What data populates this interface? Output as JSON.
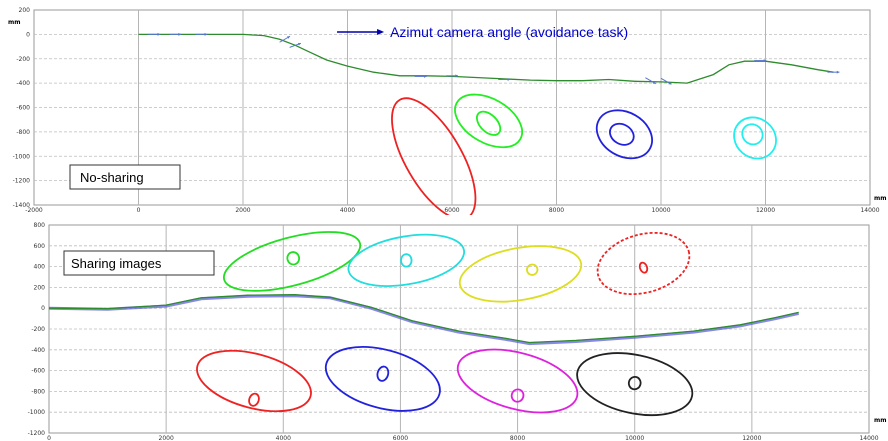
{
  "chart_data": [
    {
      "type": "line",
      "xlabel": "mm",
      "ylabel": "mm",
      "xlim": [
        -2000,
        14000
      ],
      "ylim": [
        -1400,
        200
      ],
      "xticks": [
        -2000,
        0,
        2000,
        4000,
        6000,
        8000,
        10000,
        12000,
        14000
      ],
      "xtick_labels": [
        "-2000",
        "0",
        "2000",
        "4000",
        "6000",
        "8000",
        "10000",
        "12000",
        "14000"
      ],
      "yticks": [
        200,
        0,
        -200,
        -400,
        -600,
        -800,
        -1000,
        -1200,
        -1400
      ],
      "ytick_labels": [
        "200",
        "0",
        "-200",
        "-400",
        "-600",
        "-800",
        "-1000",
        "-1200",
        "-1400"
      ],
      "grid": true,
      "box_label": "No-sharing",
      "annotation": "Azimut camera angle (avoidance task)",
      "annotation_arrow": {
        "from": [
          3800,
          20
        ],
        "to": [
          4700,
          20
        ],
        "color": "#0000aa"
      },
      "series": [
        {
          "color": "#2e8b2e",
          "x": [
            0,
            500,
            1000,
            1500,
            2000,
            2400,
            2700,
            3000,
            3300,
            3600,
            4000,
            4500,
            5000,
            5500,
            6000,
            6500,
            7000,
            7500,
            8000,
            8500,
            9000,
            9500,
            10000,
            10500,
            11000,
            11300,
            11600,
            12000,
            12500,
            13000,
            13300
          ],
          "y": [
            0,
            0,
            0,
            0,
            0,
            -10,
            -40,
            -90,
            -150,
            -210,
            -260,
            -310,
            -340,
            -340,
            -345,
            -355,
            -365,
            -375,
            -380,
            -380,
            -370,
            -385,
            -390,
            -400,
            -330,
            -250,
            -220,
            -220,
            -250,
            -290,
            -310
          ]
        }
      ],
      "direction_arrows": {
        "color": "#5577cc",
        "points": [
          [
            300,
            0,
            0
          ],
          [
            700,
            0,
            0
          ],
          [
            1200,
            0,
            0
          ],
          [
            2800,
            -40,
            -30
          ],
          [
            3000,
            -90,
            -20
          ],
          [
            5400,
            -345,
            0
          ],
          [
            6000,
            -340,
            0
          ],
          [
            7000,
            -370,
            0
          ],
          [
            9800,
            -380,
            30
          ],
          [
            10100,
            -385,
            30
          ],
          [
            11900,
            -215,
            0
          ],
          [
            13300,
            -310,
            0
          ]
        ]
      },
      "ellipses": [
        {
          "color": "#ee2222",
          "cx": 5650,
          "cy": -1020,
          "rx": 1300,
          "ry": 230,
          "angle": 60
        },
        {
          "color": "#22ee22",
          "cx": 6700,
          "cy": -710,
          "rx": 700,
          "ry": 180,
          "angle": 30
        },
        {
          "color": "#22ee22",
          "cx": 6700,
          "cy": -730,
          "rx": 270,
          "ry": 70,
          "angle": 45
        },
        {
          "color": "#2222dd",
          "cx": 9300,
          "cy": -820,
          "rx": 560,
          "ry": 180,
          "angle": 30
        },
        {
          "color": "#2222dd",
          "cx": 9250,
          "cy": -820,
          "rx": 240,
          "ry": 80,
          "angle": 30
        },
        {
          "color": "#22eeee",
          "cx": 11800,
          "cy": -850,
          "rx": 420,
          "ry": 160,
          "angle": 40
        },
        {
          "color": "#22eeee",
          "cx": 11750,
          "cy": -820,
          "rx": 200,
          "ry": 80,
          "angle": 40
        }
      ]
    },
    {
      "type": "line",
      "xlabel": "mm",
      "ylabel": "",
      "xlim": [
        0,
        14000
      ],
      "ylim": [
        -1200,
        800
      ],
      "xticks": [
        0,
        2000,
        4000,
        6000,
        8000,
        10000,
        12000,
        14000
      ],
      "xtick_labels": [
        "0",
        "2000",
        "4000",
        "6000",
        "8000",
        "10000",
        "12000",
        "14000"
      ],
      "yticks": [
        800,
        600,
        400,
        200,
        0,
        -200,
        -400,
        -600,
        -800,
        -1000,
        -1200
      ],
      "ytick_labels": [
        "800",
        "600",
        "400",
        "200",
        "0",
        "-200",
        "-400",
        "-600",
        "-800",
        "-1000",
        "-1200"
      ],
      "grid": true,
      "box_label": "Sharing images",
      "series": [
        {
          "color": "#5555dd",
          "x": [
            0,
            1000,
            2000,
            2600,
            3400,
            4200,
            4800,
            5500,
            6200,
            7000,
            7800,
            8200,
            9000,
            10000,
            11000,
            11800,
            12400,
            12800
          ],
          "y": [
            0,
            -10,
            20,
            90,
            115,
            120,
            100,
            0,
            -130,
            -230,
            -300,
            -340,
            -320,
            -280,
            -230,
            -170,
            -100,
            -50
          ]
        },
        {
          "color": "#2e8b2e",
          "x": [
            0,
            1000,
            2000,
            2600,
            3400,
            4200,
            4800,
            5500,
            6200,
            7000,
            7800,
            8200,
            9000,
            10000,
            11000,
            11800,
            12400,
            12800
          ],
          "y": [
            0,
            -5,
            30,
            100,
            125,
            130,
            105,
            10,
            -120,
            -220,
            -290,
            -330,
            -310,
            -270,
            -220,
            -160,
            -90,
            -40
          ]
        }
      ],
      "ellipses": [
        {
          "color": "#22dd22",
          "cx": 4150,
          "cy": 450,
          "rx": 1200,
          "ry": 230,
          "angle": -15
        },
        {
          "color": "#22dd22",
          "cx": 4170,
          "cy": 480,
          "rx": 100,
          "ry": 60,
          "angle": -15
        },
        {
          "color": "#22dddd",
          "cx": 6100,
          "cy": 460,
          "rx": 1000,
          "ry": 230,
          "angle": -10
        },
        {
          "color": "#22dddd",
          "cx": 6100,
          "cy": 460,
          "rx": 90,
          "ry": 60,
          "angle": 0
        },
        {
          "color": "#dddd22",
          "cx": 8050,
          "cy": 330,
          "rx": 1050,
          "ry": 250,
          "angle": -10
        },
        {
          "color": "#dddd22",
          "cx": 8250,
          "cy": 370,
          "rx": 90,
          "ry": 50,
          "angle": -20
        },
        {
          "color": "#ee2222",
          "cx": 10150,
          "cy": 430,
          "rx": 800,
          "ry": 280,
          "angle": -15,
          "dashed": true
        },
        {
          "color": "#ee2222",
          "cx": 10150,
          "cy": 390,
          "rx": 60,
          "ry": 50,
          "angle": -20
        },
        {
          "color": "#ee2222",
          "cx": 3500,
          "cy": -700,
          "rx": 1000,
          "ry": 260,
          "angle": 15
        },
        {
          "color": "#ee2222",
          "cx": 3500,
          "cy": -880,
          "rx": 80,
          "ry": 60,
          "angle": 20
        },
        {
          "color": "#2222dd",
          "cx": 5700,
          "cy": -680,
          "rx": 1000,
          "ry": 280,
          "angle": 15
        },
        {
          "color": "#2222dd",
          "cx": 5700,
          "cy": -630,
          "rx": 90,
          "ry": 70,
          "angle": 15
        },
        {
          "color": "#dd22dd",
          "cx": 8000,
          "cy": -700,
          "rx": 1050,
          "ry": 270,
          "angle": 15
        },
        {
          "color": "#dd22dd",
          "cx": 8000,
          "cy": -840,
          "rx": 100,
          "ry": 60,
          "angle": 20
        },
        {
          "color": "#222222",
          "cx": 10000,
          "cy": -730,
          "rx": 1000,
          "ry": 280,
          "angle": 12
        },
        {
          "color": "#222222",
          "cx": 10000,
          "cy": -720,
          "rx": 100,
          "ry": 60,
          "angle": 15
        }
      ]
    }
  ]
}
